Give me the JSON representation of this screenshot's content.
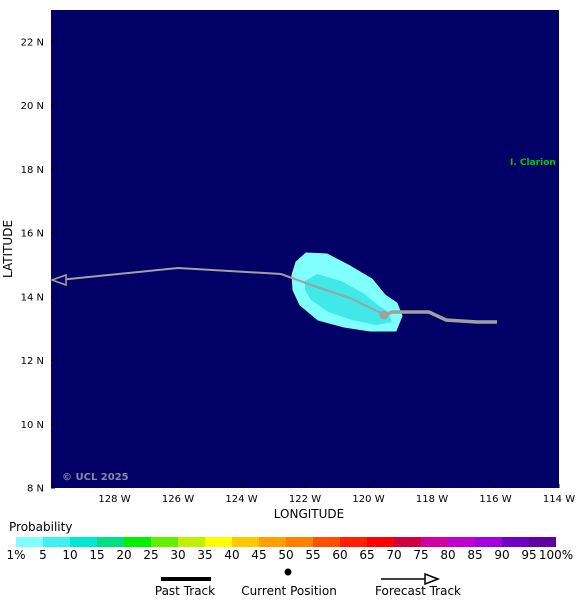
{
  "map": {
    "ylabel": "LATITUDE",
    "xlabel": "LONGITUDE",
    "lat_ticks": [
      "22 N",
      "20 N",
      "18 N",
      "16 N",
      "14 N",
      "12 N",
      "10 N",
      "8 N"
    ],
    "lon_ticks": [
      "128 W",
      "126 W",
      "124 W",
      "122 W",
      "120 W",
      "118 W",
      "116 W",
      "114 W"
    ],
    "lat_range": [
      8,
      23
    ],
    "lon_range": [
      -130,
      -114
    ],
    "ocean_color": "#000066",
    "place_label": "I. Clarion",
    "place_color": "#00cc00",
    "watermark": "© UCL 2025",
    "track_color": "#a0a0a0"
  },
  "legend": {
    "title": "Probability",
    "labels": [
      "1%",
      "5",
      "10",
      "15",
      "20",
      "25",
      "30",
      "35",
      "40",
      "45",
      "50",
      "55",
      "60",
      "65",
      "70",
      "75",
      "80",
      "85",
      "90",
      "95",
      "100%"
    ],
    "colors": [
      "#80ffff",
      "#40f0f0",
      "#00e8d0",
      "#00e080",
      "#00f000",
      "#60f000",
      "#c0f000",
      "#ffff00",
      "#ffc800",
      "#ffa000",
      "#ff8000",
      "#ff5000",
      "#ff2000",
      "#ff0000",
      "#d00040",
      "#d000a0",
      "#c000d0",
      "#a000e0",
      "#7000c8",
      "#6000a0"
    ]
  },
  "key": {
    "past_track": "Past Track",
    "current_position": "Current Position",
    "forecast_track": "Forecast Track"
  }
}
